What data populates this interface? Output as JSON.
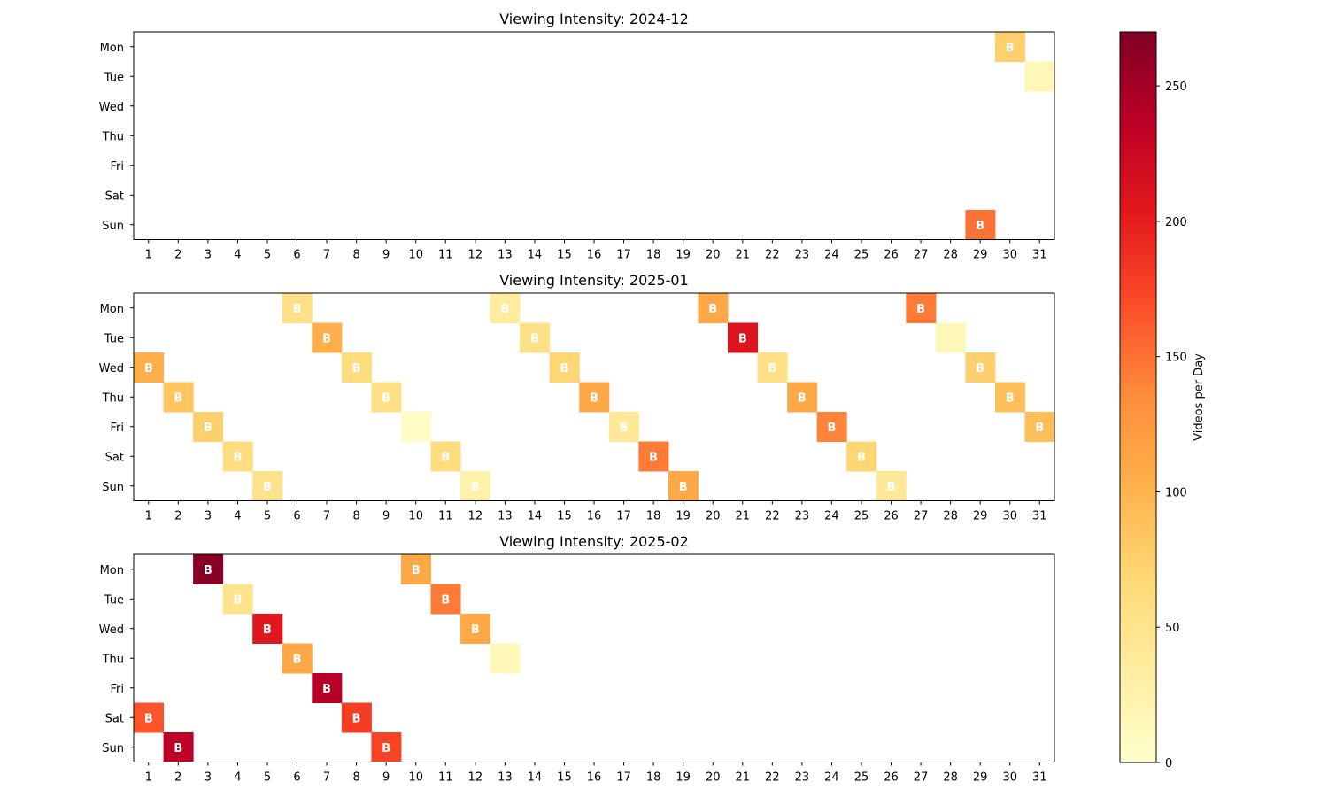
{
  "chart_data": {
    "type": "heatmap",
    "row_labels": [
      "Mon",
      "Tue",
      "Wed",
      "Thu",
      "Fri",
      "Sat",
      "Sun"
    ],
    "x_ticks": [
      1,
      2,
      3,
      4,
      5,
      6,
      7,
      8,
      9,
      10,
      11,
      12,
      13,
      14,
      15,
      16,
      17,
      18,
      19,
      20,
      21,
      22,
      23,
      24,
      25,
      26,
      27,
      28,
      29,
      30,
      31
    ],
    "cell_marker": "B",
    "colormap": "YlOrRd",
    "colorbar": {
      "label": "Videos per Day",
      "min": 0,
      "max": 270,
      "ticks": [
        0,
        50,
        100,
        150,
        200,
        250
      ]
    },
    "panels": [
      {
        "title": "Viewing Intensity: 2024-12",
        "cells": [
          {
            "day": 29,
            "weekday": "Sun",
            "value": 150,
            "marked": true
          },
          {
            "day": 30,
            "weekday": "Mon",
            "value": 75,
            "marked": true
          },
          {
            "day": 31,
            "weekday": "Tue",
            "value": 15,
            "marked": false
          }
        ]
      },
      {
        "title": "Viewing Intensity: 2025-01",
        "cells": [
          {
            "day": 1,
            "weekday": "Wed",
            "value": 105,
            "marked": true
          },
          {
            "day": 2,
            "weekday": "Thu",
            "value": 85,
            "marked": true
          },
          {
            "day": 3,
            "weekday": "Fri",
            "value": 75,
            "marked": true
          },
          {
            "day": 4,
            "weekday": "Sat",
            "value": 60,
            "marked": true
          },
          {
            "day": 5,
            "weekday": "Sun",
            "value": 50,
            "marked": true
          },
          {
            "day": 6,
            "weekday": "Mon",
            "value": 55,
            "marked": true
          },
          {
            "day": 7,
            "weekday": "Tue",
            "value": 105,
            "marked": true
          },
          {
            "day": 8,
            "weekday": "Wed",
            "value": 60,
            "marked": true
          },
          {
            "day": 9,
            "weekday": "Thu",
            "value": 55,
            "marked": true
          },
          {
            "day": 10,
            "weekday": "Fri",
            "value": 5,
            "marked": false
          },
          {
            "day": 11,
            "weekday": "Sat",
            "value": 60,
            "marked": true
          },
          {
            "day": 12,
            "weekday": "Sun",
            "value": 25,
            "marked": true
          },
          {
            "day": 13,
            "weekday": "Mon",
            "value": 35,
            "marked": true
          },
          {
            "day": 14,
            "weekday": "Tue",
            "value": 55,
            "marked": true
          },
          {
            "day": 15,
            "weekday": "Wed",
            "value": 70,
            "marked": true
          },
          {
            "day": 16,
            "weekday": "Thu",
            "value": 110,
            "marked": true
          },
          {
            "day": 17,
            "weekday": "Fri",
            "value": 40,
            "marked": true
          },
          {
            "day": 18,
            "weekday": "Sat",
            "value": 145,
            "marked": true
          },
          {
            "day": 19,
            "weekday": "Sun",
            "value": 110,
            "marked": true
          },
          {
            "day": 20,
            "weekday": "Mon",
            "value": 110,
            "marked": true
          },
          {
            "day": 21,
            "weekday": "Tue",
            "value": 210,
            "marked": true
          },
          {
            "day": 22,
            "weekday": "Wed",
            "value": 55,
            "marked": true
          },
          {
            "day": 23,
            "weekday": "Thu",
            "value": 110,
            "marked": true
          },
          {
            "day": 24,
            "weekday": "Fri",
            "value": 140,
            "marked": true
          },
          {
            "day": 25,
            "weekday": "Sat",
            "value": 70,
            "marked": true
          },
          {
            "day": 26,
            "weekday": "Sun",
            "value": 40,
            "marked": true
          },
          {
            "day": 27,
            "weekday": "Mon",
            "value": 145,
            "marked": true
          },
          {
            "day": 28,
            "weekday": "Tue",
            "value": 15,
            "marked": false
          },
          {
            "day": 29,
            "weekday": "Wed",
            "value": 75,
            "marked": true
          },
          {
            "day": 30,
            "weekday": "Thu",
            "value": 90,
            "marked": true
          },
          {
            "day": 31,
            "weekday": "Fri",
            "value": 90,
            "marked": true
          }
        ]
      },
      {
        "title": "Viewing Intensity: 2025-02",
        "cells": [
          {
            "day": 1,
            "weekday": "Sat",
            "value": 165,
            "marked": true
          },
          {
            "day": 2,
            "weekday": "Sun",
            "value": 235,
            "marked": true
          },
          {
            "day": 3,
            "weekday": "Mon",
            "value": 265,
            "marked": true
          },
          {
            "day": 4,
            "weekday": "Tue",
            "value": 50,
            "marked": true
          },
          {
            "day": 5,
            "weekday": "Wed",
            "value": 205,
            "marked": true
          },
          {
            "day": 6,
            "weekday": "Thu",
            "value": 110,
            "marked": true
          },
          {
            "day": 7,
            "weekday": "Fri",
            "value": 240,
            "marked": true
          },
          {
            "day": 8,
            "weekday": "Sat",
            "value": 180,
            "marked": true
          },
          {
            "day": 9,
            "weekday": "Sun",
            "value": 175,
            "marked": true
          },
          {
            "day": 10,
            "weekday": "Mon",
            "value": 110,
            "marked": true
          },
          {
            "day": 11,
            "weekday": "Tue",
            "value": 145,
            "marked": true
          },
          {
            "day": 12,
            "weekday": "Wed",
            "value": 110,
            "marked": true
          },
          {
            "day": 13,
            "weekday": "Thu",
            "value": 15,
            "marked": false
          }
        ]
      }
    ]
  }
}
